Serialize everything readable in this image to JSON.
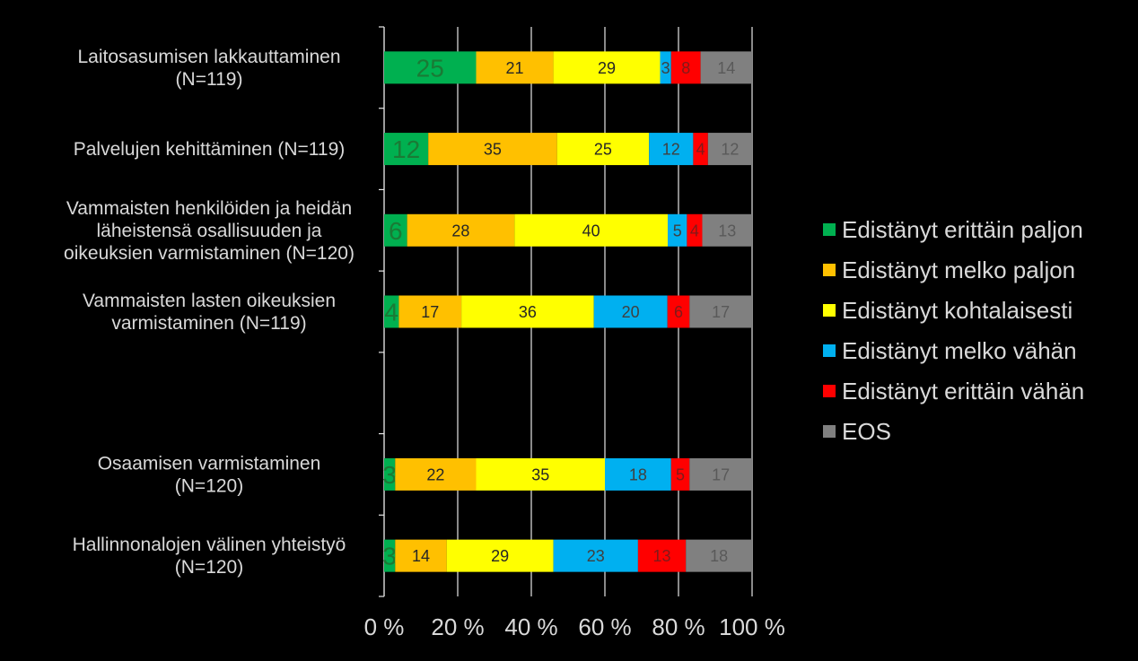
{
  "chart_data": {
    "type": "bar",
    "orientation": "horizontal",
    "stacked": "percent",
    "categories": [
      [
        "Laitosasumisen lakkauttaminen",
        "(N=119)"
      ],
      [
        "Palvelujen kehittäminen (N=119)"
      ],
      [
        "Vammaisten henkilöiden ja heidän",
        "läheistensä osallisuuden ja",
        "oikeuksien varmistaminen (N=120)"
      ],
      [
        "Vammaisten lasten oikeuksien",
        "varmistaminen (N=119)"
      ],
      [],
      [
        "Osaamisen varmistaminen",
        "(N=120)"
      ],
      [
        "Hallinnonalojen välinen yhteistyö",
        "(N=120)"
      ]
    ],
    "series": [
      {
        "name": "Edistänyt erittäin paljon",
        "color": "#00b050",
        "label_color": "#1a7a35",
        "values": [
          25,
          12,
          6,
          4,
          null,
          3,
          3
        ]
      },
      {
        "name": "Edistänyt melko paljon",
        "color": "#ffc000",
        "label_color": "#262626",
        "values": [
          21,
          35,
          28,
          17,
          null,
          22,
          14
        ]
      },
      {
        "name": "Edistänyt kohtalaisesti",
        "color": "#ffff00",
        "label_color": "#262626",
        "values": [
          29,
          25,
          40,
          36,
          null,
          35,
          29
        ]
      },
      {
        "name": "Edistänyt melko vähän",
        "color": "#00b0f0",
        "label_color": "#404040",
        "values": [
          3,
          12,
          5,
          20,
          null,
          18,
          23
        ]
      },
      {
        "name": "Edistänyt erittäin vähän",
        "color": "#ff0000",
        "label_color": "#7f1a1a",
        "values": [
          8,
          4,
          4,
          6,
          null,
          5,
          13
        ]
      },
      {
        "name": "EOS",
        "color": "#808080",
        "label_color": "#595959",
        "values": [
          14,
          12,
          13,
          17,
          null,
          17,
          18
        ]
      }
    ],
    "xticks": [
      "0 %",
      "20 %",
      "40 %",
      "60 %",
      "80 %",
      "100 %"
    ],
    "xlim": [
      0,
      100
    ],
    "legend_position": "right",
    "grid": "vertical"
  }
}
